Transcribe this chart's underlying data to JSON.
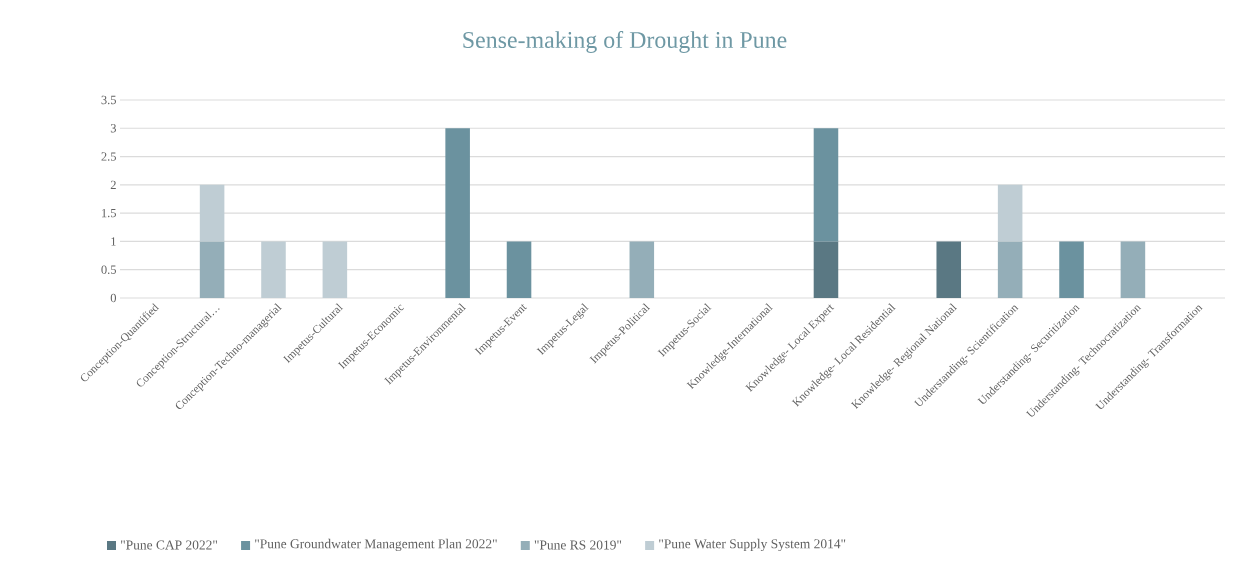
{
  "chart_data": {
    "type": "bar",
    "title": "Sense-making  of Drought  in Pune",
    "stacked": true,
    "categories": [
      "Conception-Quantified",
      "Conception-Structural…",
      "Conception-Techno-managerial",
      "Impetus-Cultural",
      "Impetus-Economic",
      "Impetus-Environmental",
      "Impetus-Event",
      "Impetus-Legal",
      "Impetus-Political",
      "Impetus-Social",
      "Knowledge-International",
      "Knowledge- Local Expert",
      "Knowledge- Local Residential",
      "Knowledge- Regional National",
      "Understanding- Scientification",
      "Understanding- Securitization",
      "Understanding- Technocratization",
      "Understanding- Transformation"
    ],
    "series": [
      {
        "name": "\"Pune CAP 2022\"",
        "color": "#5a7883",
        "values": [
          0,
          0,
          0,
          0,
          0,
          0,
          0,
          0,
          0,
          0,
          0,
          1,
          0,
          1,
          0,
          0,
          0,
          0
        ]
      },
      {
        "name": "\"Pune Groundwater Management Plan 2022\"",
        "color": "#6b929f",
        "values": [
          0,
          0,
          0,
          0,
          0,
          3,
          1,
          0,
          0,
          0,
          0,
          2,
          0,
          0,
          0,
          1,
          0,
          0
        ]
      },
      {
        "name": "\"Pune RS 2019\"",
        "color": "#94aeb8",
        "values": [
          0,
          1,
          0,
          0,
          0,
          0,
          0,
          0,
          1,
          0,
          0,
          0,
          0,
          0,
          1,
          0,
          1,
          0
        ]
      },
      {
        "name": "\"Pune Water Supply System 2014\"",
        "color": "#bfcdd4",
        "values": [
          0,
          1,
          1,
          1,
          0,
          0,
          0,
          0,
          0,
          0,
          0,
          0,
          0,
          0,
          1,
          0,
          0,
          0
        ]
      }
    ],
    "ylim": [
      0,
      3.5
    ],
    "yticks": [
      0,
      0.5,
      1,
      1.5,
      2,
      2.5,
      3,
      3.5
    ],
    "grid": "y",
    "legend": "bottom"
  }
}
